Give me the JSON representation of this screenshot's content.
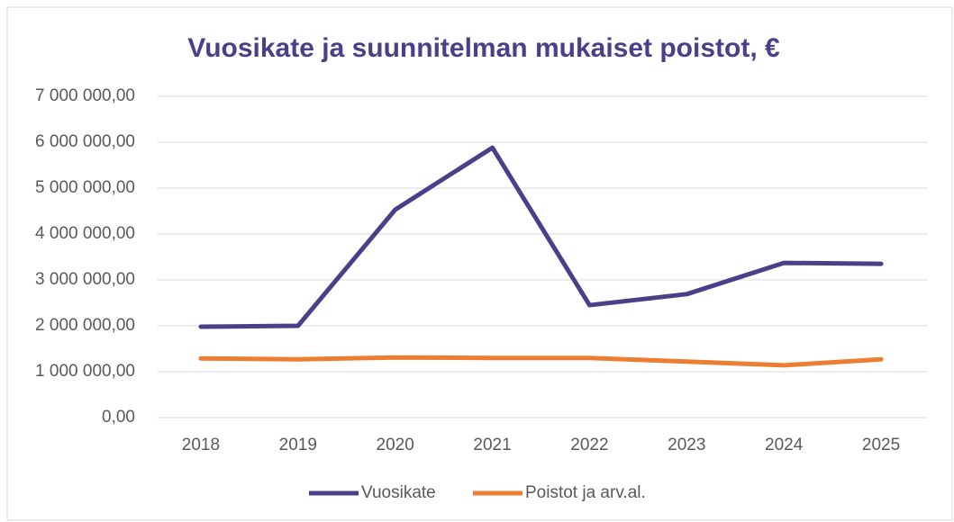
{
  "chart_data": {
    "type": "line",
    "title": "Vuosikate ja suunnitelman mukaiset poistot, €",
    "categories": [
      "2018",
      "2019",
      "2020",
      "2021",
      "2022",
      "2023",
      "2024",
      "2025"
    ],
    "series": [
      {
        "name": "Vuosikate",
        "color": "#4b3f8a",
        "values": [
          1980000,
          2000000,
          4530000,
          5880000,
          2450000,
          2690000,
          3370000,
          3350000
        ]
      },
      {
        "name": "Poistot ja arv.al.",
        "color": "#ed7d31",
        "values": [
          1290000,
          1270000,
          1310000,
          1300000,
          1300000,
          1220000,
          1140000,
          1270000
        ]
      }
    ],
    "ylim": [
      0,
      7000000
    ],
    "yticks": [
      {
        "value": 0,
        "label": "0,00"
      },
      {
        "value": 1000000,
        "label": "1 000 000,00"
      },
      {
        "value": 2000000,
        "label": "2 000 000,00"
      },
      {
        "value": 3000000,
        "label": "3 000 000,00"
      },
      {
        "value": 4000000,
        "label": "4 000 000,00"
      },
      {
        "value": 5000000,
        "label": "5 000 000,00"
      },
      {
        "value": 6000000,
        "label": "6 000 000,00"
      },
      {
        "value": 7000000,
        "label": "7 000 000,00"
      }
    ],
    "grid": true,
    "legend": "bottom"
  }
}
